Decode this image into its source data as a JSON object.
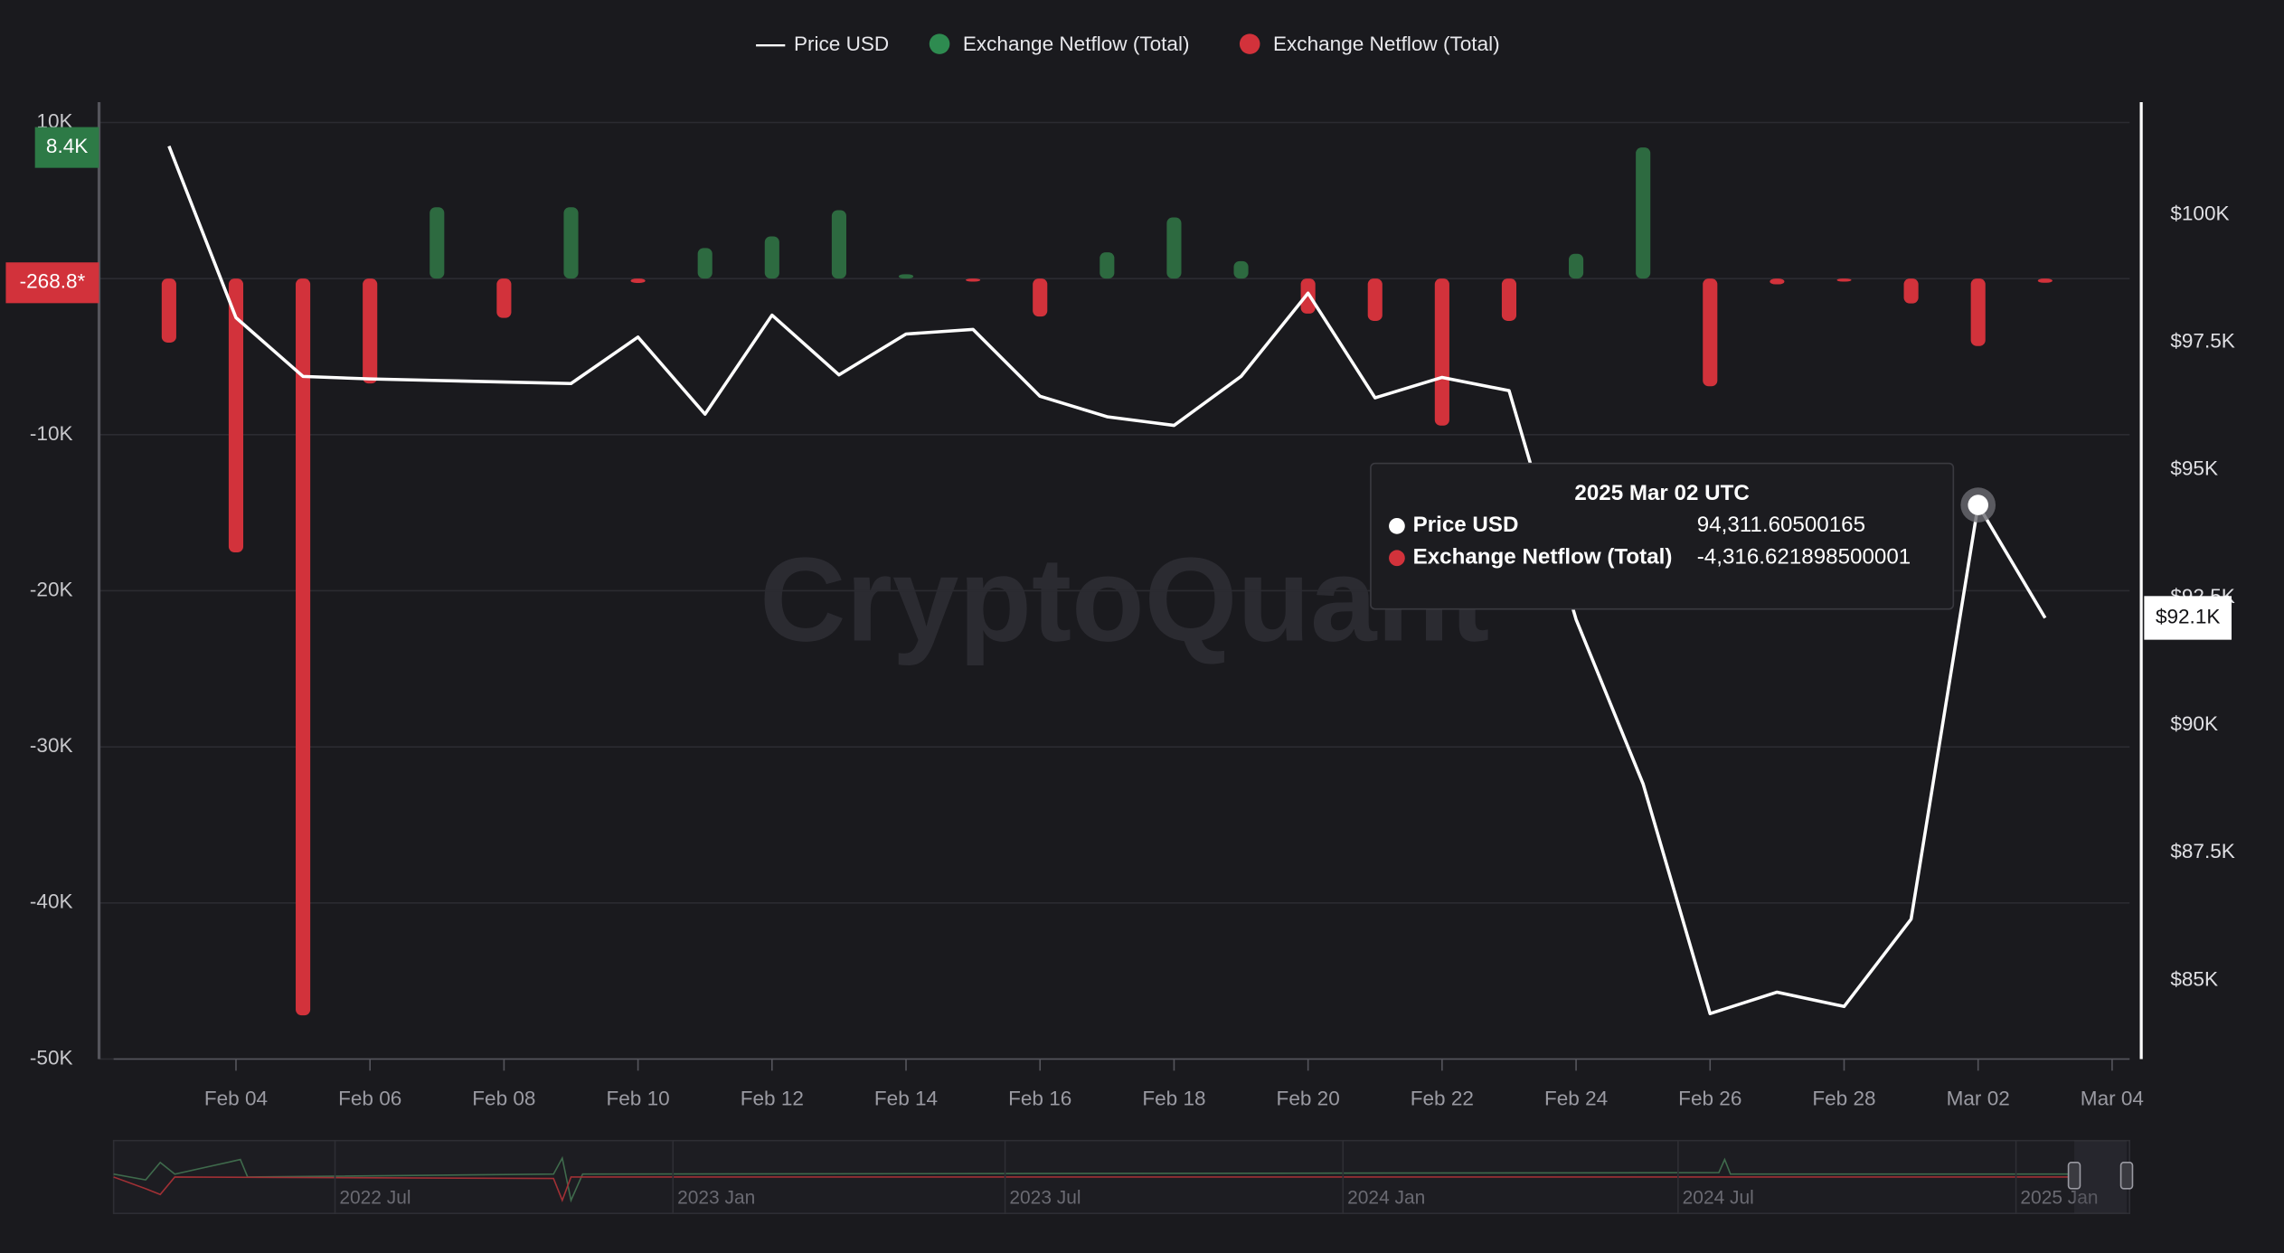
{
  "chart_data": {
    "type": "line-bar",
    "x": [
      "Feb 03",
      "Feb 04",
      "Feb 05",
      "Feb 06",
      "Feb 07",
      "Feb 08",
      "Feb 09",
      "Feb 10",
      "Feb 11",
      "Feb 12",
      "Feb 13",
      "Feb 14",
      "Feb 15",
      "Feb 16",
      "Feb 17",
      "Feb 18",
      "Feb 19",
      "Feb 20",
      "Feb 21",
      "Feb 22",
      "Feb 23",
      "Feb 24",
      "Feb 25",
      "Feb 26",
      "Feb 27",
      "Feb 28",
      "Mar 01",
      "Mar 02",
      "Mar 03"
    ],
    "xlim": [
      "Feb 02",
      "Mar 04"
    ],
    "xticks": [
      "Feb 04",
      "Feb 06",
      "Feb 08",
      "Feb 10",
      "Feb 12",
      "Feb 14",
      "Feb 16",
      "Feb 18",
      "Feb 20",
      "Feb 22",
      "Feb 24",
      "Feb 26",
      "Feb 28",
      "Mar 02",
      "Mar 04"
    ],
    "ylim": [
      -50000,
      11300
    ],
    "yticks": [
      {
        "value": 10000,
        "label": "10K"
      },
      {
        "value": -10000,
        "label": "-10K"
      },
      {
        "value": -20000,
        "label": "-20K"
      },
      {
        "value": -30000,
        "label": "-30K"
      },
      {
        "value": -40000,
        "label": "-40K"
      },
      {
        "value": -50000,
        "label": "-50K"
      }
    ],
    "y2lim": [
      83460,
      102200
    ],
    "y2ticks": [
      {
        "value": 85000,
        "label": "$85K"
      },
      {
        "value": 87500,
        "label": "$87.5K"
      },
      {
        "value": 90000,
        "label": "$90K"
      },
      {
        "value": 92500,
        "label": "$92.5K"
      },
      {
        "value": 95000,
        "label": "$95K"
      },
      {
        "value": 97500,
        "label": "$97.5K"
      },
      {
        "value": 100000,
        "label": "$100K"
      }
    ],
    "grid": true,
    "series": [
      {
        "name": "Price USD",
        "color": "#ffffff",
        "kind": "line",
        "axis": "y2",
        "values": [
          101340,
          97980,
          96830,
          96780,
          96750,
          96720,
          96690,
          97600,
          96090,
          98030,
          96860,
          97660,
          97750,
          96440,
          96040,
          95870,
          96830,
          98460,
          96410,
          96810,
          96550,
          92070,
          88850,
          84350,
          84770,
          84490,
          86200,
          94311.60500165,
          92100
        ]
      },
      {
        "name": "Exchange Netflow (Total)",
        "color": "#2d6a40",
        "kind": "bar",
        "values": [
          null,
          null,
          null,
          null,
          4570,
          null,
          4570,
          null,
          1960,
          2700,
          4380,
          280,
          null,
          null,
          1680,
          3920,
          1120,
          null,
          null,
          null,
          null,
          1590,
          8400,
          null,
          null,
          null,
          null,
          null,
          null
        ]
      },
      {
        "name": "Exchange Netflow (Total)",
        "color": "#d2323b",
        "kind": "bar",
        "values": [
          -4100,
          -17540,
          -47200,
          -6720,
          null,
          -2520,
          null,
          -280,
          null,
          null,
          null,
          null,
          -190,
          -2430,
          null,
          null,
          null,
          -2240,
          -2710,
          -9420,
          -2710,
          null,
          null,
          -6900,
          -370,
          -190,
          -1590,
          -4316.621898500001,
          -268.8
        ]
      }
    ],
    "y_badges": [
      {
        "value": 8400,
        "label": "8.4K",
        "color": "#2d7a46"
      },
      {
        "value": -268.8,
        "label": "-268.8*",
        "color": "#d2323b"
      }
    ],
    "y2_badge": {
      "value": 92100,
      "label": "$92.1K"
    },
    "tooltip": {
      "title": "2025 Mar 02 UTC",
      "rows": [
        {
          "name": "Price USD",
          "value": "94,311.60500165",
          "color": "#ffffff"
        },
        {
          "name": "Exchange Netflow (Total)",
          "value": "-4,316.621898500001",
          "color": "#d2323b"
        }
      ]
    },
    "watermark": "CryptoQuant",
    "navigator": {
      "labels": [
        "2022 Jul",
        "2023 Jan",
        "2023 Jul",
        "2024 Jan",
        "2024 Jul",
        "2025 Jan"
      ]
    }
  }
}
